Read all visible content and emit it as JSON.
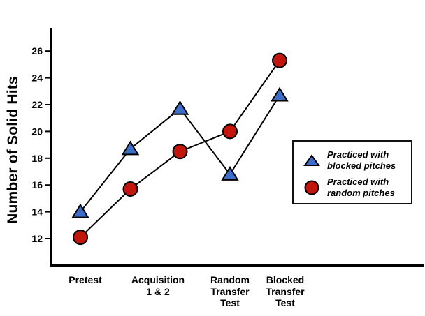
{
  "chart_data": {
    "type": "line",
    "title": "",
    "ylabel": "Number of Solid Hits",
    "xlabel": "",
    "yticks": [
      12,
      14,
      16,
      18,
      20,
      22,
      24,
      26
    ],
    "ylim": [
      10,
      27.5
    ],
    "grid": false,
    "legend_position": "right-middle",
    "x_points": [
      "Pretest",
      "Acquisition 1",
      "Acquisition 2",
      "Random Transfer Test",
      "Blocked Transfer Test"
    ],
    "axis_category_labels": [
      {
        "lines": [
          "Pretest"
        ]
      },
      {
        "lines": [
          "Acquisition",
          "1 & 2"
        ]
      },
      {
        "lines": [
          "Random",
          "Transfer",
          "Test"
        ]
      },
      {
        "lines": [
          "Blocked",
          "Transfer",
          "Test"
        ]
      }
    ],
    "series": [
      {
        "name": "Practiced with blocked pitches",
        "marker": "triangle",
        "color": "#3B6DC9",
        "line_color": "#000000",
        "values": [
          14.0,
          18.7,
          21.7,
          16.8,
          22.7
        ]
      },
      {
        "name": "Practiced with random pitches",
        "marker": "circle",
        "color": "#C2150E",
        "line_color": "#000000",
        "values": [
          12.1,
          15.7,
          18.5,
          20.0,
          25.3
        ]
      }
    ]
  },
  "legend": {
    "items": [
      {
        "lines": [
          "Practiced with",
          "blocked pitches"
        ],
        "marker": "triangle"
      },
      {
        "lines": [
          "Practiced with",
          "random pitches"
        ],
        "marker": "circle"
      }
    ]
  },
  "colors": {
    "axis": "#000000",
    "background": "#ffffff"
  }
}
